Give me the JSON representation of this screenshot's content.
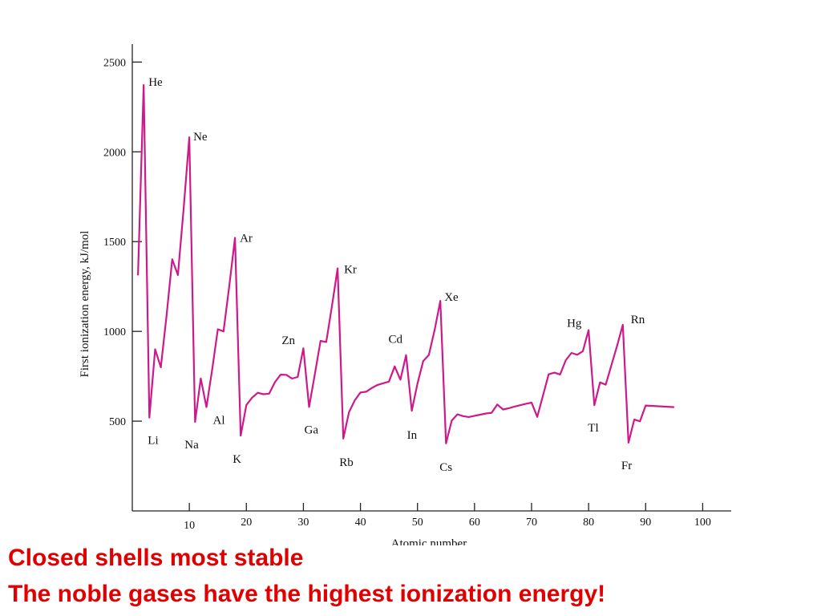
{
  "colors": {
    "series": "#cc1a8a",
    "caption": "#e00000",
    "axis": "#222222"
  },
  "caption": {
    "line1": "Closed shells most stable",
    "line2": "The noble gases have the highest ionization energy!"
  },
  "chart_data": {
    "type": "line",
    "title": "",
    "xlabel": "Atomic number",
    "ylabel": "First ionization energy, kJ/mol",
    "xlim": [
      0,
      105
    ],
    "ylim": [
      0,
      2600
    ],
    "xticks": [
      10,
      20,
      30,
      40,
      50,
      60,
      70,
      80,
      90,
      100
    ],
    "yticks": [
      500,
      1000,
      1500,
      2000,
      2500
    ],
    "grid": false,
    "x": [
      1,
      2,
      3,
      4,
      5,
      6,
      7,
      8,
      9,
      10,
      11,
      12,
      13,
      14,
      15,
      16,
      17,
      18,
      19,
      20,
      21,
      22,
      23,
      24,
      25,
      26,
      27,
      28,
      29,
      30,
      31,
      32,
      33,
      34,
      35,
      36,
      37,
      38,
      39,
      40,
      41,
      42,
      43,
      44,
      45,
      46,
      47,
      48,
      49,
      50,
      51,
      52,
      53,
      54,
      55,
      56,
      57,
      58,
      59,
      60,
      61,
      62,
      63,
      64,
      65,
      66,
      67,
      68,
      69,
      70,
      71,
      72,
      73,
      74,
      75,
      76,
      77,
      78,
      79,
      80,
      81,
      82,
      83,
      84,
      85,
      86,
      87,
      88,
      89,
      90,
      95
    ],
    "series": [
      {
        "values": [
          1312,
          2372,
          520,
          900,
          800,
          1086,
          1402,
          1314,
          1681,
          2081,
          496,
          738,
          578,
          786,
          1012,
          1000,
          1251,
          1521,
          419,
          590,
          631,
          658,
          650,
          653,
          717,
          759,
          758,
          737,
          746,
          906,
          579,
          762,
          947,
          941,
          1140,
          1351,
          403,
          550,
          616,
          660,
          664,
          685,
          702,
          711,
          720,
          805,
          731,
          868,
          558,
          709,
          834,
          869,
          1008,
          1170,
          376,
          503,
          538,
          528,
          523,
          530,
          536,
          543,
          547,
          593,
          565,
          572,
          581,
          589,
          597,
          603,
          524,
          642,
          761,
          770,
          760,
          840,
          880,
          870,
          890,
          1007,
          589,
          716,
          703,
          812,
          920,
          1037,
          380,
          509,
          499,
          587,
          578
        ]
      }
    ],
    "annotations": [
      {
        "label": "He",
        "x": 2
      },
      {
        "label": "Ne",
        "x": 10
      },
      {
        "label": "Ar",
        "x": 18
      },
      {
        "label": "Kr",
        "x": 36
      },
      {
        "label": "Xe",
        "x": 54
      },
      {
        "label": "Rn",
        "x": 86
      },
      {
        "label": "Hg",
        "x": 80
      },
      {
        "label": "Cd",
        "x": 48
      },
      {
        "label": "Zn",
        "x": 30
      },
      {
        "label": "Li",
        "x": 3
      },
      {
        "label": "Na",
        "x": 11
      },
      {
        "label": "Al",
        "x": 13
      },
      {
        "label": "K",
        "x": 19
      },
      {
        "label": "Ga",
        "x": 31
      },
      {
        "label": "Rb",
        "x": 37
      },
      {
        "label": "In",
        "x": 49
      },
      {
        "label": "Cs",
        "x": 55
      },
      {
        "label": "Tl",
        "x": 81
      },
      {
        "label": "Fr",
        "x": 87
      }
    ]
  }
}
